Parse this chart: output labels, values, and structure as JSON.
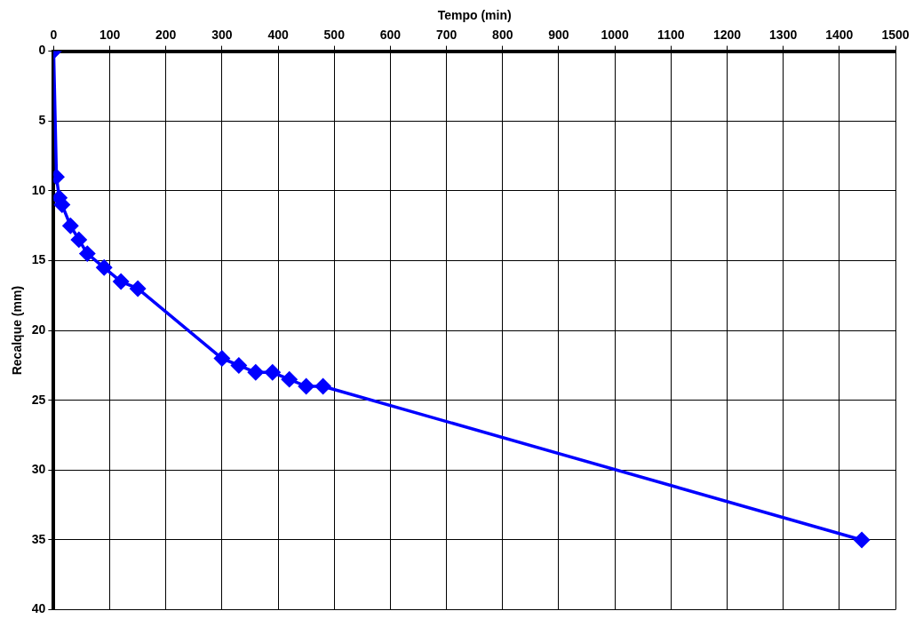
{
  "chart_data": {
    "type": "line",
    "xlabel": "Tempo (min)",
    "ylabel": "Recalque (mm)",
    "x": [
      0,
      5,
      10,
      15,
      30,
      45,
      60,
      90,
      120,
      150,
      300,
      330,
      360,
      390,
      420,
      450,
      480,
      1440
    ],
    "series": [
      {
        "color": "#0000ff",
        "values": [
          0,
          9,
          10.5,
          11,
          12.5,
          13.5,
          14.5,
          15.5,
          16.5,
          17,
          22,
          22.5,
          23,
          23,
          23.5,
          24,
          24,
          35
        ]
      }
    ],
    "xlim": [
      0,
      1500
    ],
    "xticks": [
      0,
      100,
      200,
      300,
      400,
      500,
      600,
      700,
      800,
      900,
      1000,
      1100,
      1200,
      1300,
      1400,
      1500
    ],
    "ylim": [
      40,
      0
    ],
    "yticks": [
      0,
      5,
      10,
      15,
      20,
      25,
      30,
      35,
      40
    ],
    "grid": true,
    "legend": false,
    "marker": "diamond",
    "line_style": "solid"
  }
}
